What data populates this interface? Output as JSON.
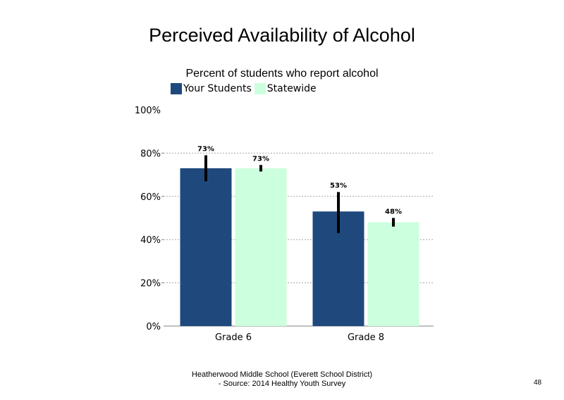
{
  "chart_data": {
    "type": "bar",
    "title": "Perceived Availability of Alcohol",
    "subtitle": "Percent of students  who report alcohol",
    "categories": [
      "Grade 6",
      "Grade 8"
    ],
    "series": [
      {
        "name": "Your Students",
        "values": [
          73,
          53
        ],
        "labels": [
          "73%",
          "53%"
        ],
        "error_low": [
          67,
          43
        ],
        "error_high": [
          79,
          62
        ],
        "color": "#1f497d"
      },
      {
        "name": "Statewide",
        "values": [
          73,
          48
        ],
        "labels": [
          "73%",
          "48%"
        ],
        "error_low": [
          71.5,
          46
        ],
        "error_high": [
          74.5,
          50
        ],
        "color": "#ccffdd"
      }
    ],
    "ylim": [
      0,
      100
    ],
    "yticks": [
      "0%",
      "20%",
      "40%",
      "60%",
      "80%",
      "100%"
    ],
    "ytick_values": [
      0,
      20,
      40,
      60,
      80,
      100
    ],
    "grid": true,
    "legend_position": "top-left"
  },
  "footer": {
    "line1": "Heatherwood Middle School (Everett School District)",
    "line2": "- Source: 2014 Healthy  Youth Survey"
  },
  "page_number": "48"
}
